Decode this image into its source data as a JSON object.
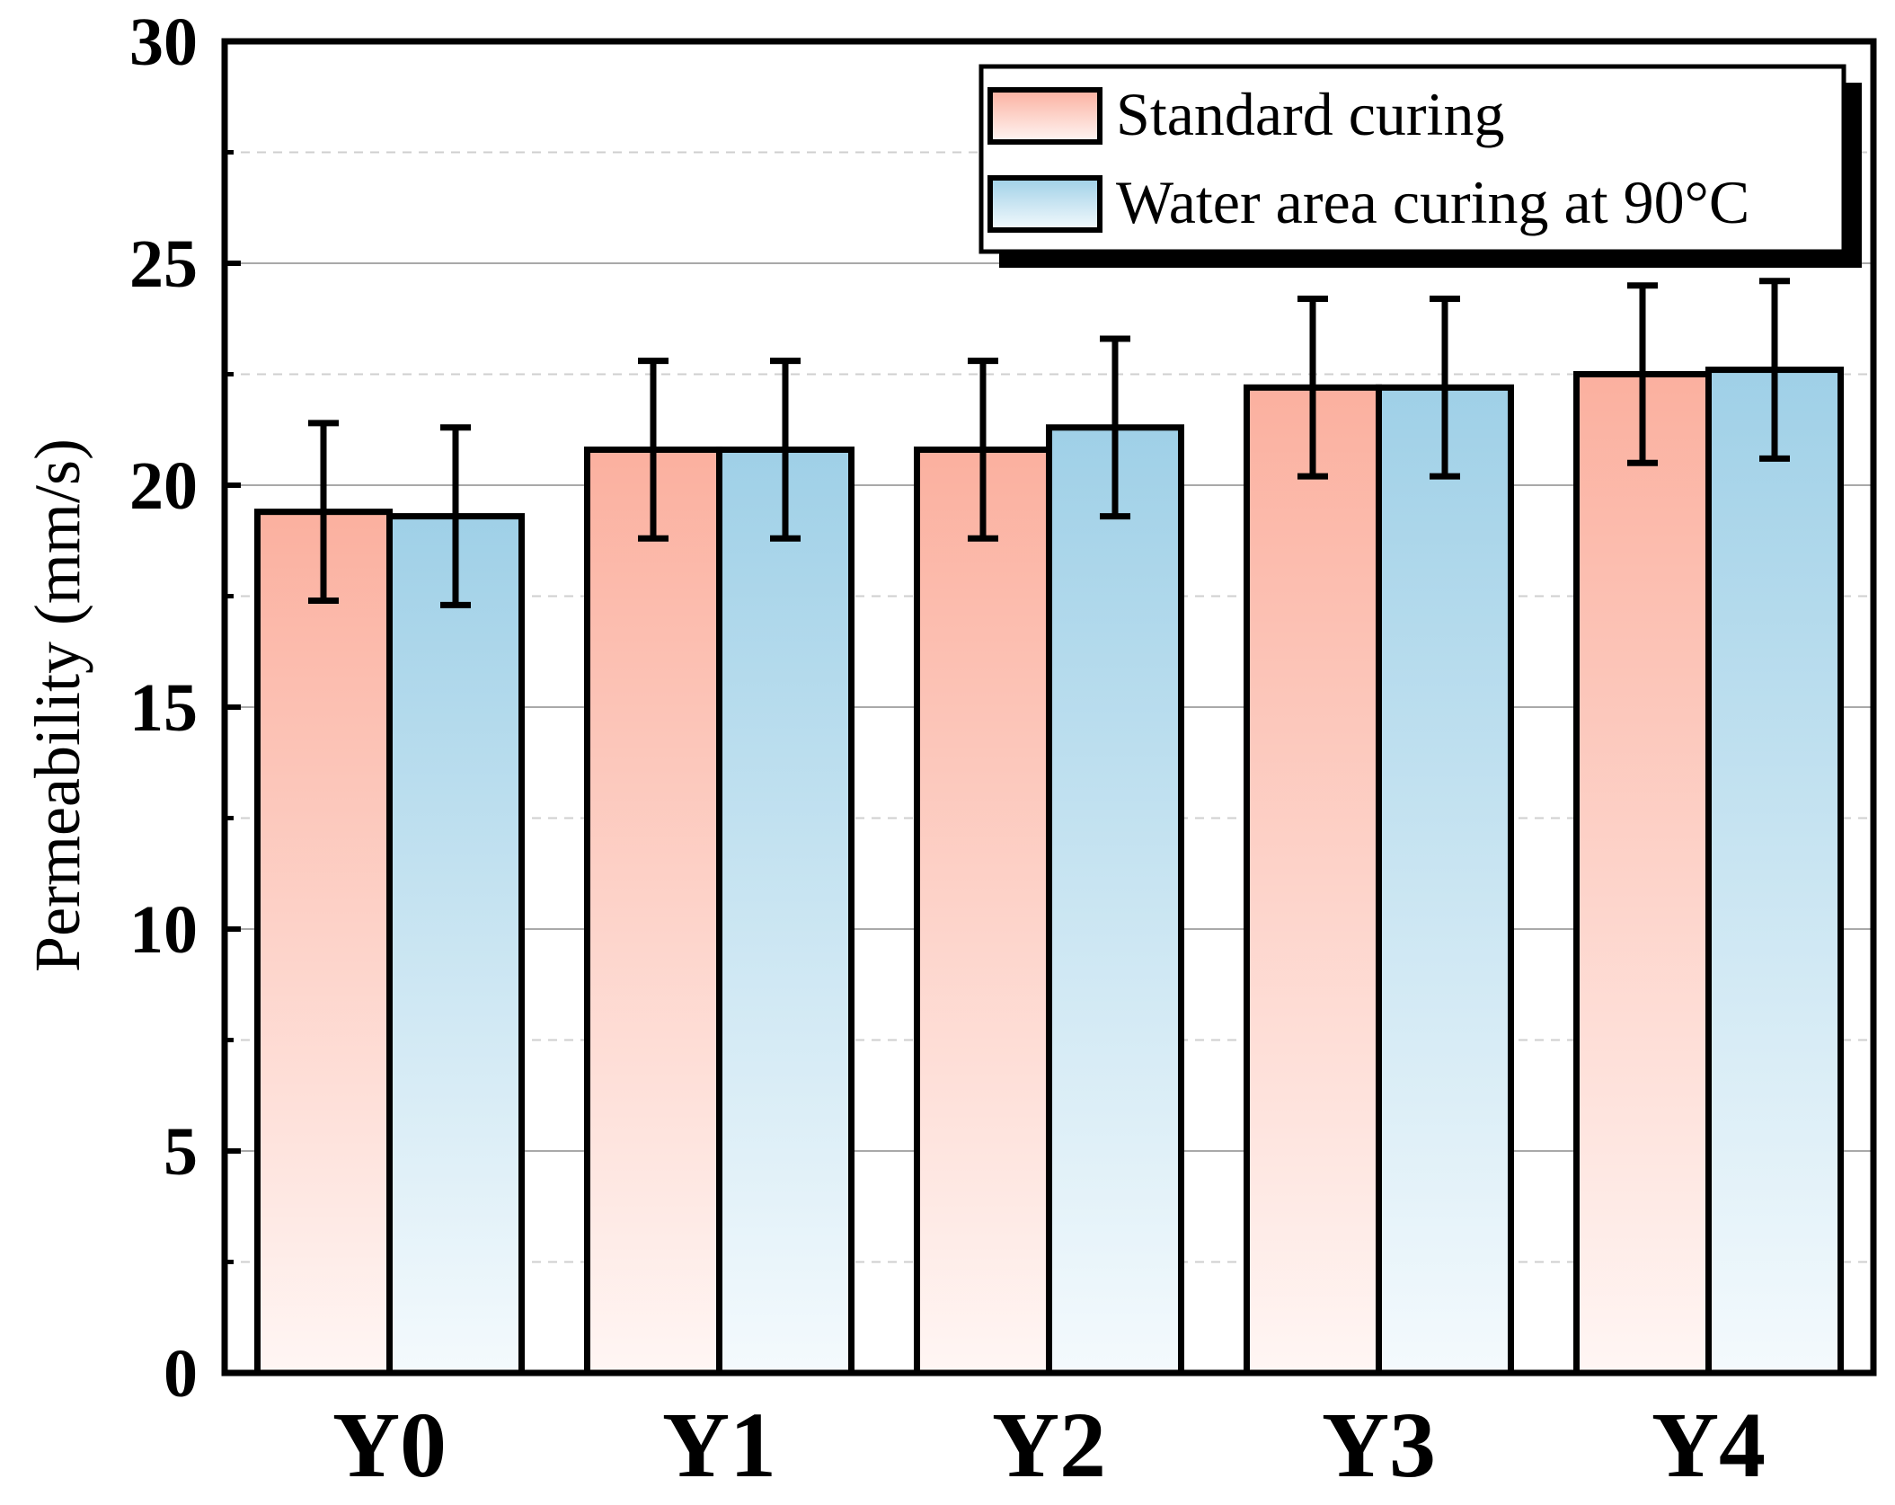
{
  "chart_data": {
    "type": "bar",
    "title": "",
    "xlabel": "",
    "ylabel": "Permeability (mm/s)",
    "ylim": [
      0,
      30
    ],
    "yticks": [
      "0",
      "5",
      "10",
      "15",
      "20",
      "25",
      "30"
    ],
    "ytick_values": [
      0,
      5,
      10,
      15,
      20,
      25,
      30
    ],
    "minor_gridlines": [
      2.5,
      7.5,
      12.5,
      17.5,
      22.5,
      27.5
    ],
    "categories": [
      "Y0",
      "Y1",
      "Y2",
      "Y3",
      "Y4"
    ],
    "series": [
      {
        "name": "Standard curing",
        "color_top": "#fbb09f",
        "color_bottom": "#fff6f4",
        "values": [
          19.4,
          20.8,
          20.8,
          22.2,
          22.5
        ],
        "errors": [
          2.0,
          2.0,
          2.0,
          2.0,
          2.0
        ]
      },
      {
        "name": "Water area curing at 90°C",
        "color_top": "#9fd0e7",
        "color_bottom": "#f4fafd",
        "values": [
          19.3,
          20.8,
          21.3,
          22.2,
          22.6
        ],
        "errors": [
          2.0,
          2.0,
          2.0,
          2.0,
          2.0
        ]
      }
    ],
    "legend_position": "top-right",
    "grid": true
  }
}
